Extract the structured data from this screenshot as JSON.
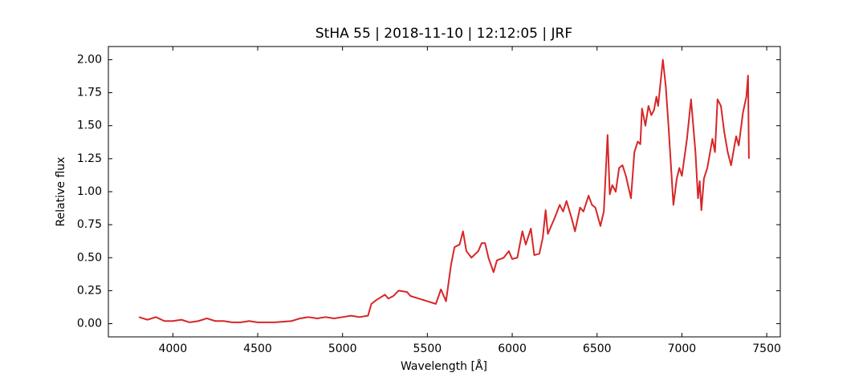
{
  "chart_data": {
    "type": "line",
    "title": "StHA 55 | 2018-11-10 | 12:12:05 | JRF",
    "x_label": "Wavelength [Å]",
    "y_label": "Relative flux",
    "color": "#d62728",
    "x": [
      3800,
      3850,
      3900,
      3950,
      4000,
      4050,
      4100,
      4150,
      4200,
      4250,
      4300,
      4350,
      4400,
      4450,
      4500,
      4600,
      4700,
      4750,
      4800,
      4850,
      4900,
      4950,
      5000,
      5050,
      5100,
      5150,
      5170,
      5200,
      5250,
      5270,
      5300,
      5330,
      5380,
      5400,
      5450,
      5500,
      5550,
      5580,
      5610,
      5640,
      5660,
      5690,
      5710,
      5730,
      5760,
      5800,
      5820,
      5840,
      5860,
      5890,
      5910,
      5950,
      5980,
      6000,
      6030,
      6060,
      6080,
      6110,
      6130,
      6160,
      6180,
      6197,
      6210,
      6250,
      6280,
      6300,
      6320,
      6350,
      6370,
      6400,
      6420,
      6450,
      6470,
      6490,
      6520,
      6540,
      6562,
      6575,
      6590,
      6610,
      6630,
      6650,
      6670,
      6700,
      6720,
      6740,
      6755,
      6765,
      6785,
      6803,
      6820,
      6836,
      6850,
      6860,
      6888,
      6905,
      6921,
      6950,
      6970,
      6985,
      7000,
      7030,
      7054,
      7080,
      7095,
      7105,
      7115,
      7130,
      7150,
      7180,
      7195,
      7210,
      7230,
      7250,
      7270,
      7290,
      7310,
      7320,
      7335,
      7360,
      7380,
      7390,
      7395
    ],
    "values": [
      0.05,
      0.03,
      0.05,
      0.02,
      0.02,
      0.03,
      0.01,
      0.02,
      0.04,
      0.02,
      0.02,
      0.01,
      0.01,
      0.02,
      0.01,
      0.01,
      0.02,
      0.04,
      0.05,
      0.04,
      0.05,
      0.04,
      0.05,
      0.06,
      0.05,
      0.06,
      0.15,
      0.18,
      0.22,
      0.19,
      0.21,
      0.25,
      0.24,
      0.21,
      0.19,
      0.17,
      0.15,
      0.26,
      0.17,
      0.45,
      0.58,
      0.6,
      0.7,
      0.55,
      0.5,
      0.55,
      0.61,
      0.61,
      0.5,
      0.39,
      0.48,
      0.5,
      0.55,
      0.49,
      0.5,
      0.7,
      0.6,
      0.72,
      0.52,
      0.53,
      0.65,
      0.86,
      0.68,
      0.8,
      0.9,
      0.85,
      0.93,
      0.8,
      0.7,
      0.88,
      0.85,
      0.97,
      0.9,
      0.88,
      0.74,
      0.85,
      1.43,
      0.98,
      1.05,
      1.0,
      1.18,
      1.2,
      1.12,
      0.95,
      1.3,
      1.38,
      1.36,
      1.63,
      1.5,
      1.65,
      1.58,
      1.62,
      1.72,
      1.65,
      2.0,
      1.8,
      1.5,
      0.9,
      1.1,
      1.18,
      1.12,
      1.4,
      1.7,
      1.3,
      0.95,
      1.08,
      0.86,
      1.1,
      1.18,
      1.4,
      1.3,
      1.7,
      1.65,
      1.45,
      1.3,
      1.2,
      1.35,
      1.42,
      1.35,
      1.6,
      1.72,
      1.88,
      1.25
    ],
    "xlim": [
      3620,
      7580
    ],
    "ylim": [
      -0.1,
      2.1
    ],
    "xticks": [
      4000,
      4500,
      5000,
      5500,
      6000,
      6500,
      7000,
      7500
    ],
    "yticks": [
      {
        "value": 0,
        "label": "0.00"
      },
      {
        "value": 0.25,
        "label": "0.25"
      },
      {
        "value": 0.5,
        "label": "0.50"
      },
      {
        "value": 0.75,
        "label": "0.75"
      },
      {
        "value": 1,
        "label": "1.00"
      },
      {
        "value": 1.25,
        "label": "1.25"
      },
      {
        "value": 1.5,
        "label": "1.50"
      },
      {
        "value": 1.75,
        "label": "1.75"
      },
      {
        "value": 2,
        "label": "2.00"
      }
    ]
  }
}
